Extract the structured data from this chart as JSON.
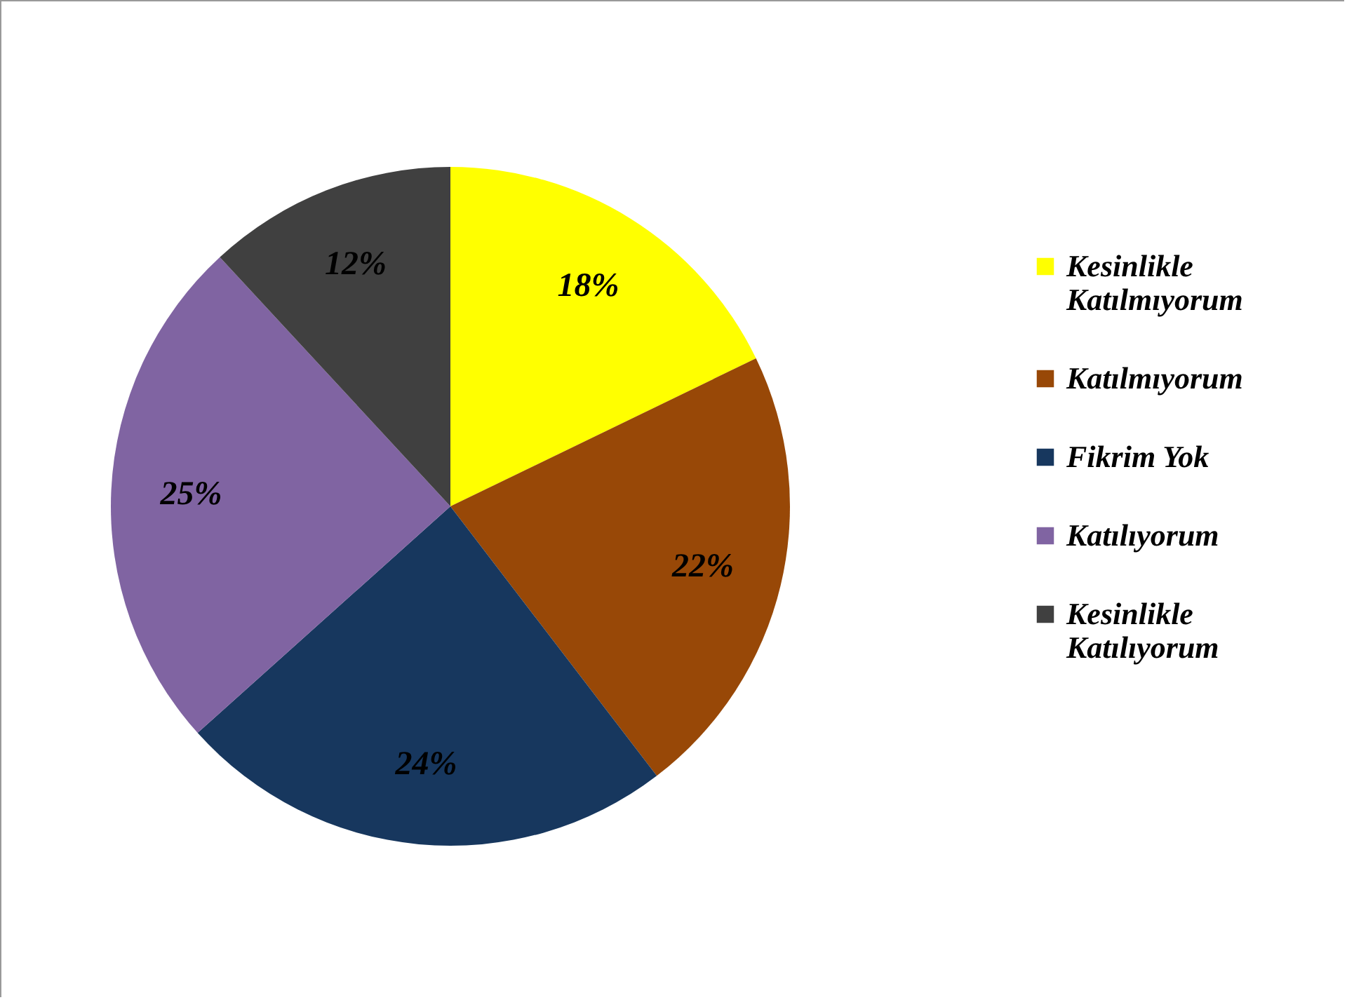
{
  "chart_data": {
    "type": "pie",
    "categories": [
      "Kesinlikle Katılmıyorum",
      "Katılmıyorum",
      "Fikrim Yok",
      "Katılıyorum",
      "Kesinlikle Katılıyorum"
    ],
    "values": [
      18,
      22,
      24,
      25,
      12
    ],
    "colors": [
      "#ffff00",
      "#984807",
      "#17375e",
      "#8064a2",
      "#404040"
    ],
    "value_labels": [
      "18%",
      "22%",
      "24%",
      "25%",
      "12%"
    ],
    "legend": "right"
  }
}
